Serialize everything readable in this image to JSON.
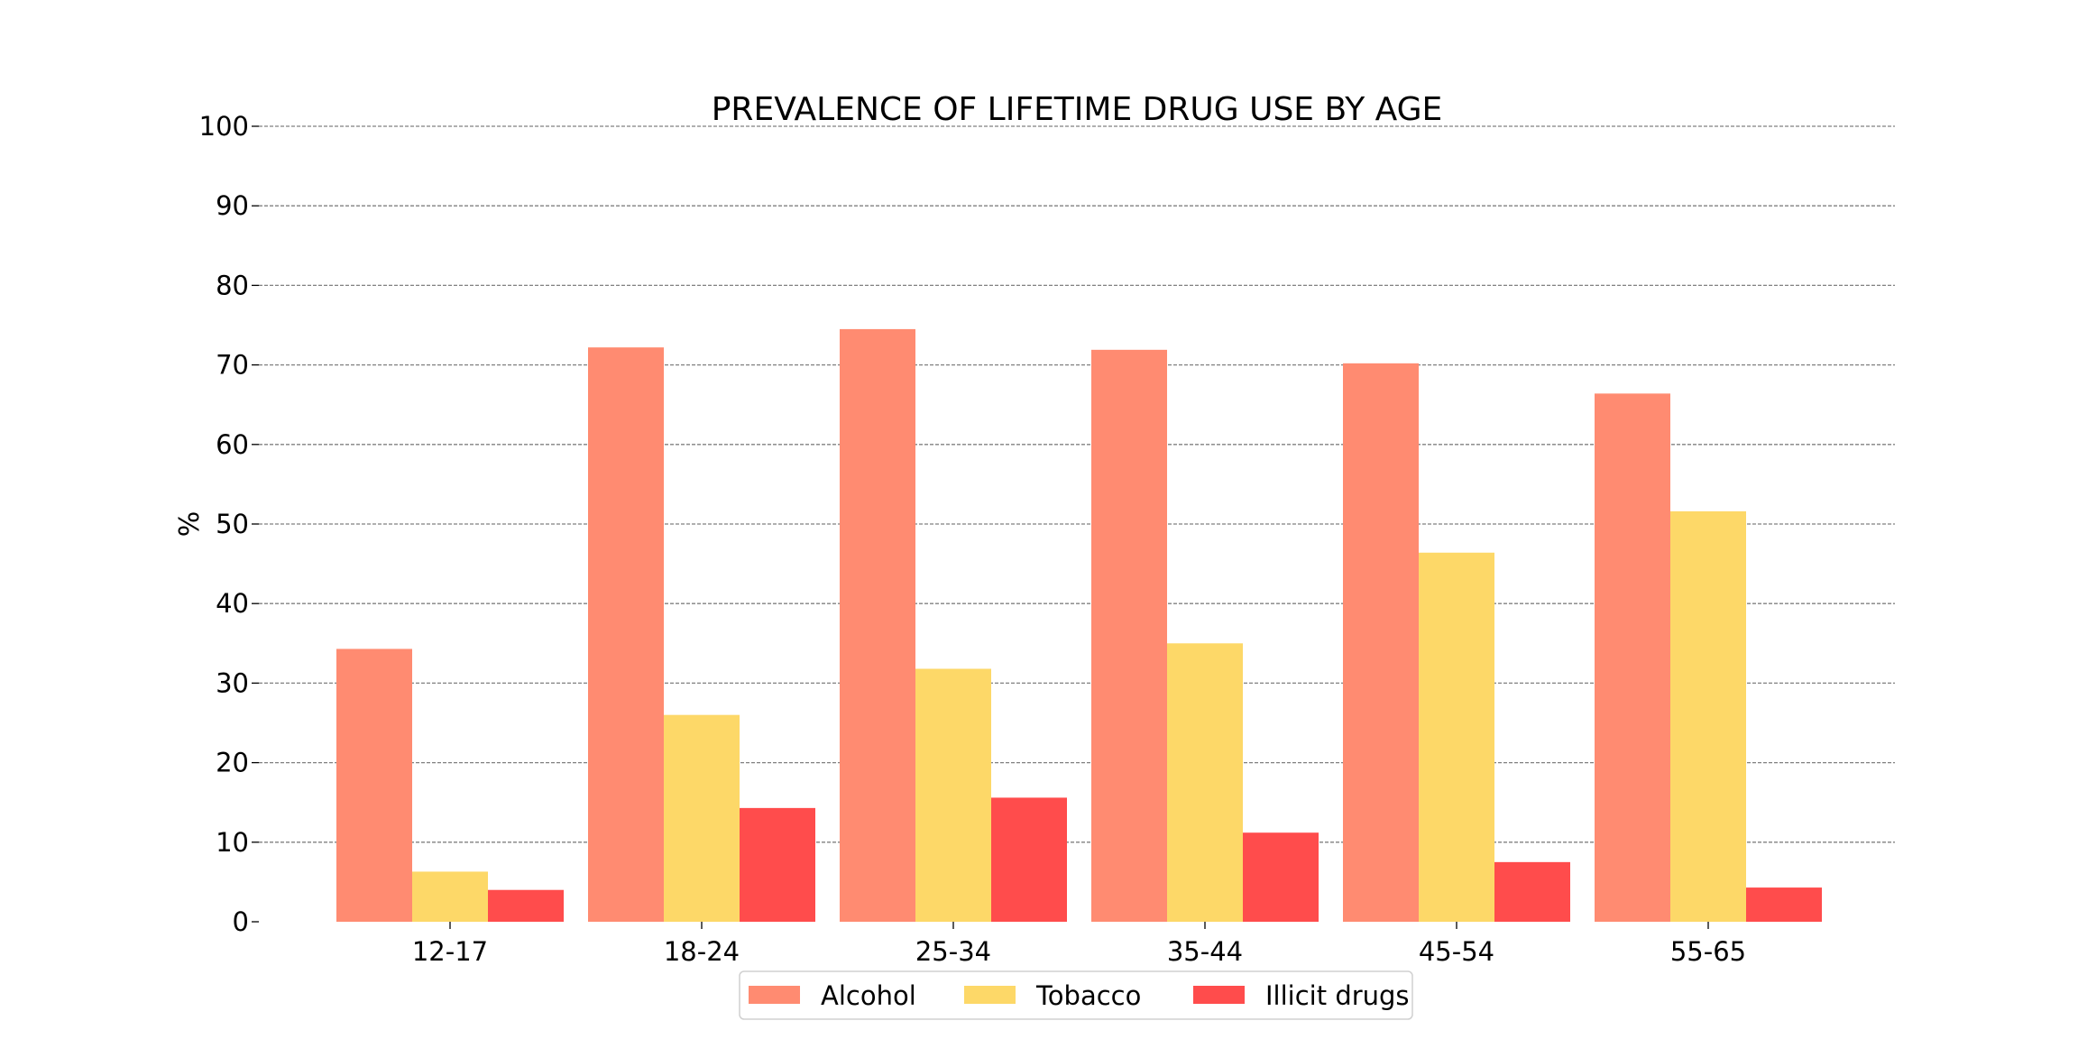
{
  "chart_data": {
    "type": "bar",
    "title": "PREVALENCE OF LIFETIME DRUG USE BY AGE",
    "xlabel": "",
    "ylabel": "%",
    "categories": [
      "12-17",
      "18-24",
      "25-34",
      "35-44",
      "45-54",
      "55-65"
    ],
    "series": [
      {
        "name": "Alcohol",
        "color": "#FF8B71",
        "values": [
          34.3,
          72.2,
          74.5,
          71.9,
          70.2,
          66.4
        ]
      },
      {
        "name": "Tobacco",
        "color": "#FDD868",
        "values": [
          6.3,
          26.0,
          31.8,
          35.0,
          46.4,
          51.6
        ]
      },
      {
        "name": "Illicit drugs",
        "color": "#FF4C4C",
        "values": [
          4.0,
          14.3,
          15.6,
          11.2,
          7.5,
          4.3
        ]
      }
    ],
    "ylim": [
      0,
      100
    ],
    "yticks": [
      "0",
      "10",
      "20",
      "30",
      "40",
      "50",
      "60",
      "70",
      "80",
      "90",
      "100"
    ],
    "grid": "y dashed",
    "legend_position": "bottom-center"
  }
}
